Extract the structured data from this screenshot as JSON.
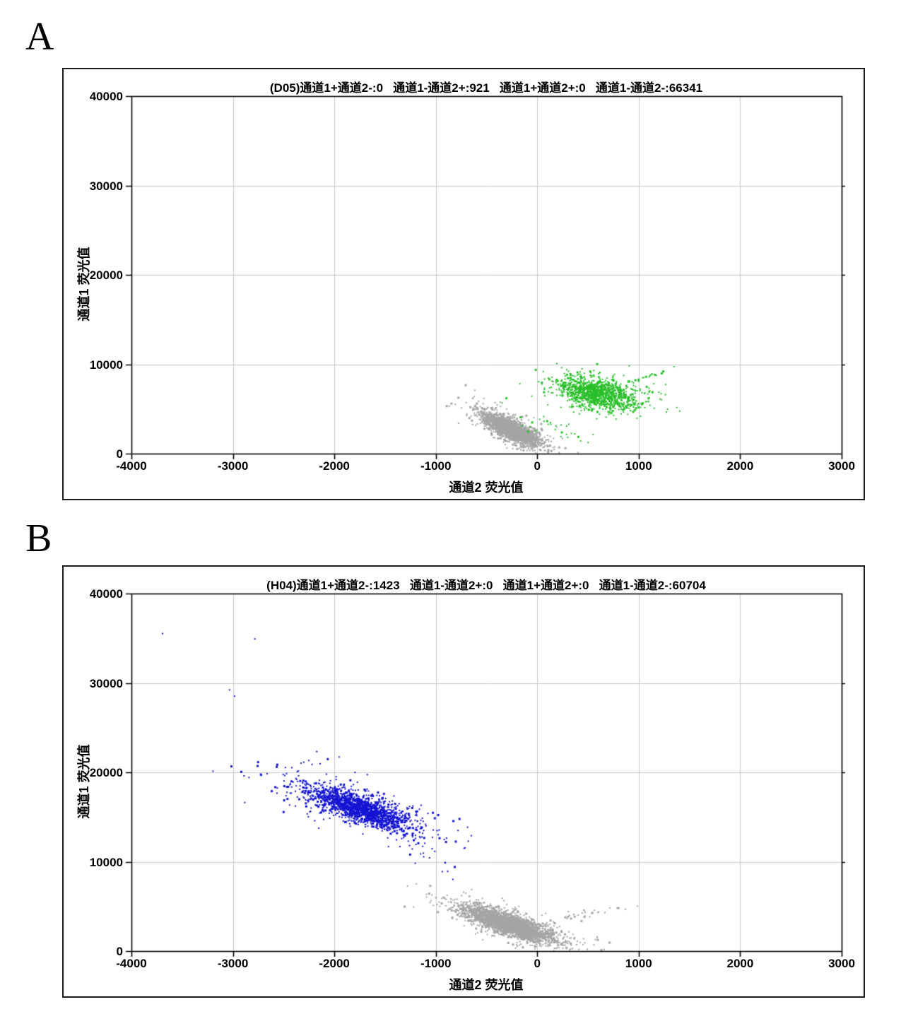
{
  "panels": [
    {
      "letter": "A"
    },
    {
      "letter": "B"
    }
  ],
  "colors": {
    "positive_green": "#2abf2a",
    "positive_blue": "#1414d2",
    "negative_gray": "#a5a5a5",
    "grid": "#c8c8c8",
    "axis": "#000000"
  },
  "chart_data": [
    {
      "panel": "A",
      "type": "scatter",
      "well": "D05",
      "title": "(D05)通道1+通道2-:0   通道1-通道2+:921   通道1+通道2+:0   通道1-通道2-:66341",
      "stats": {
        "通道1+通道2-": 0,
        "通道1-通道2+": 921,
        "通道1+通道2+": 0,
        "通道1-通道2-": 66341
      },
      "xlabel": "通道2 荧光值",
      "ylabel": "通道1 荧光值",
      "xlim": [
        -4000,
        3000
      ],
      "ylim": [
        0,
        40000
      ],
      "xticks": [
        -4000,
        -3000,
        -2000,
        -1000,
        0,
        1000,
        2000,
        3000
      ],
      "yticks": [
        0,
        10000,
        20000,
        30000,
        40000
      ],
      "grid": true,
      "legend": "none",
      "series": [
        {
          "name": "通道1-通道2-",
          "color_key": "negative_gray",
          "seed": 11,
          "clusters": [
            {
              "n": 2000,
              "cx": -265,
              "cy": 2800,
              "u": [
                125,
                -680
              ],
              "v": [
                18,
                420
              ]
            },
            {
              "n": 350,
              "cx": -265,
              "cy": 2850,
              "u": [
                215,
                -1150
              ],
              "v": [
                35,
                760
              ]
            },
            {
              "n": 16,
              "cx": -555,
              "cy": 5400,
              "u": [
                80,
                -500
              ],
              "v": [
                30,
                350
              ]
            }
          ],
          "points": [
            [
              -640,
              6300
            ],
            [
              -40,
              4100
            ]
          ]
        },
        {
          "name": "通道1-通道2+",
          "color_key": "positive_green",
          "seed": 7,
          "clusters": [
            {
              "n": 900,
              "cx": 590,
              "cy": 6800,
              "u": [
                180,
                -300
              ],
              "v": [
                0,
                780
              ]
            },
            {
              "n": 260,
              "cx": 600,
              "cy": 6900,
              "u": [
                300,
                -420
              ],
              "v": [
                0,
                1150
              ]
            },
            {
              "n": 26,
              "cx": 1000,
              "cy": 8400,
              "u": [
                180,
                600
              ],
              "v": [
                40,
                260
              ]
            },
            {
              "n": 26,
              "cx": 230,
              "cy": 2600,
              "u": [
                140,
                -600
              ],
              "v": [
                60,
                400
              ]
            }
          ],
          "points": [
            [
              1260,
              7800
            ],
            [
              1340,
              9800
            ],
            [
              900,
              9900
            ],
            [
              420,
              1500
            ],
            [
              60,
              3700
            ],
            [
              -80,
              3100
            ]
          ]
        }
      ]
    },
    {
      "panel": "B",
      "type": "scatter",
      "well": "H04",
      "title": "(H04)通道1+通道2-:1423   通道1-通道2+:0   通道1+通道2+:0   通道1-通道2-:60704",
      "stats": {
        "通道1+通道2-": 1423,
        "通道1-通道2+": 0,
        "通道1+通道2+": 0,
        "通道1-通道2-": 60704
      },
      "xlabel": "通道2 荧光值",
      "ylabel": "通道1 荧光值",
      "xlim": [
        -4000,
        3000
      ],
      "ylim": [
        0,
        40000
      ],
      "xticks": [
        -4000,
        -3000,
        -2000,
        -1000,
        0,
        1000,
        2000,
        3000
      ],
      "yticks": [
        0,
        10000,
        20000,
        30000,
        40000
      ],
      "grid": true,
      "legend": "none",
      "series": [
        {
          "name": "通道1-通道2-",
          "color_key": "negative_gray",
          "seed": 21,
          "clusters": [
            {
              "n": 2400,
              "cx": -290,
              "cy": 3100,
              "u": [
                215,
                -830
              ],
              "v": [
                26,
                480
              ]
            },
            {
              "n": 420,
              "cx": -280,
              "cy": 3150,
              "u": [
                360,
                -1400
              ],
              "v": [
                50,
                800
              ]
            },
            {
              "n": 30,
              "cx": 420,
              "cy": 4100,
              "u": [
                270,
                580
              ],
              "v": [
                60,
                380
              ]
            },
            {
              "n": 14,
              "cx": -130,
              "cy": 1100,
              "u": [
                90,
                -350
              ],
              "v": [
                50,
                250
              ]
            },
            {
              "n": 12,
              "cx": -560,
              "cy": 5300,
              "u": [
                90,
                -450
              ],
              "v": [
                35,
                300
              ]
            }
          ],
          "points": [
            [
              -680,
              6200
            ],
            [
              980,
              5100
            ],
            [
              860,
              4760
            ],
            [
              -30,
              350
            ]
          ]
        },
        {
          "name": "通道1+通道2-",
          "color_key": "positive_blue",
          "seed": 5,
          "clusters": [
            {
              "n": 1400,
              "cx": -1760,
              "cy": 16100,
              "u": [
                250,
                -950
              ],
              "v": [
                28,
                640
              ]
            },
            {
              "n": 320,
              "cx": -1750,
              "cy": 16200,
              "u": [
                430,
                -1500
              ],
              "v": [
                55,
                1100
              ]
            },
            {
              "n": 14,
              "cx": -2250,
              "cy": 20700,
              "u": [
                140,
                -500
              ],
              "v": [
                40,
                600
              ]
            },
            {
              "n": 16,
              "cx": -1160,
              "cy": 11300,
              "u": [
                160,
                -900
              ],
              "v": [
                40,
                350
              ]
            }
          ],
          "points": [
            [
              -3700,
              35600
            ],
            [
              -2790,
              35000
            ],
            [
              -3040,
              29300
            ],
            [
              -2990,
              28600
            ],
            [
              -2180,
              22400
            ],
            [
              -1960,
              21800
            ],
            [
              -2890,
              16700
            ],
            [
              -943,
              8970
            ],
            [
              -838,
              8100
            ],
            [
              -1210,
              9900
            ]
          ]
        }
      ]
    }
  ]
}
